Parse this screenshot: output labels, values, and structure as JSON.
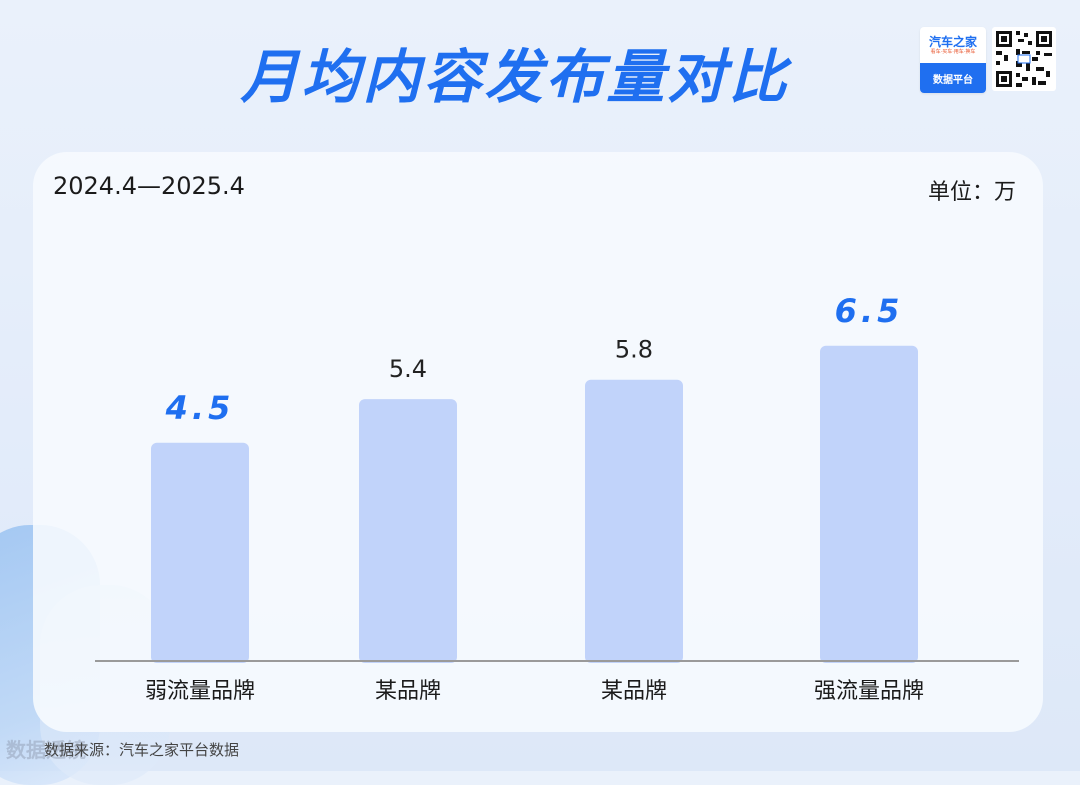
{
  "header": {
    "title": "月均内容发布量对比"
  },
  "logo": {
    "name": "汽车之家",
    "slogan": "看车·买车·用车·换车",
    "platform": "数据平台"
  },
  "meta": {
    "date_range": "2024.4—2025.4",
    "unit": "单位：万"
  },
  "footer": {
    "source": "数据来源：汽车之家平台数据",
    "watermark": "数据透镜"
  },
  "colors": {
    "accent": "#1f6ff0",
    "bar": "#c1d3fa"
  },
  "chart_data": {
    "type": "bar",
    "categories": [
      "弱流量品牌",
      "某品牌",
      "某品牌",
      "强流量品牌"
    ],
    "values": [
      4.5,
      5.4,
      5.8,
      6.5
    ],
    "highlight": [
      true,
      false,
      false,
      true
    ],
    "title": "月均内容发布量对比",
    "xlabel": "",
    "ylabel": "",
    "unit": "万",
    "ylim": [
      0,
      7.5
    ],
    "grid": false,
    "legend": "none"
  }
}
